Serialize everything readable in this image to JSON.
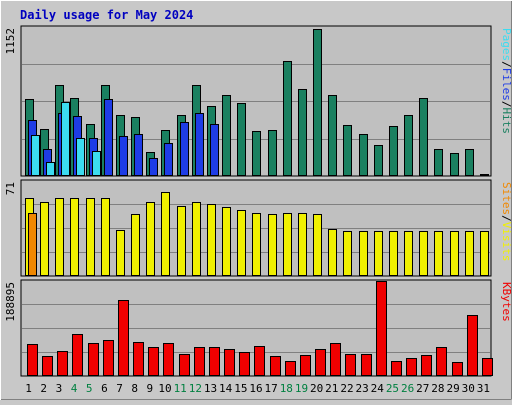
{
  "chart_data": [
    {
      "type": "bar",
      "title": "Daily usage for May 2024",
      "panel": "hits-files-pages",
      "ymax_label": "1152",
      "ylim": [
        0,
        1152
      ],
      "categories": [
        "1",
        "2",
        "3",
        "4",
        "5",
        "6",
        "7",
        "8",
        "9",
        "10",
        "11",
        "12",
        "13",
        "14",
        "15",
        "16",
        "17",
        "18",
        "19",
        "20",
        "21",
        "22",
        "23",
        "24",
        "25",
        "26",
        "27",
        "28",
        "29",
        "30",
        "31"
      ],
      "series": [
        {
          "name": "Hits",
          "color": "#1a8060",
          "values": [
            590,
            360,
            700,
            600,
            400,
            700,
            470,
            450,
            180,
            350,
            470,
            700,
            540,
            620,
            560,
            340,
            350,
            890,
            670,
            1140,
            620,
            390,
            320,
            230,
            380,
            470,
            600,
            200,
            170,
            200,
            1
          ]
        },
        {
          "name": "Files",
          "color": "#1e3ce6",
          "values": [
            430,
            200,
            480,
            460,
            290,
            590,
            300,
            320,
            130,
            250,
            410,
            480,
            400,
            0,
            0,
            0,
            0,
            0,
            0,
            0,
            0,
            0,
            0,
            0,
            0,
            0,
            0,
            0,
            0,
            0,
            0
          ]
        },
        {
          "name": "Pages",
          "color": "#3cdcf0",
          "values": [
            310,
            100,
            570,
            290,
            190,
            0,
            0,
            0,
            0,
            0,
            0,
            0,
            0,
            0,
            0,
            0,
            0,
            0,
            0,
            0,
            0,
            0,
            0,
            0,
            0,
            0,
            0,
            0,
            0,
            0,
            0
          ]
        }
      ]
    },
    {
      "type": "bar",
      "panel": "visits-sites",
      "ymax_label": "71",
      "ylim": [
        0,
        71
      ],
      "categories": [
        "1",
        "2",
        "3",
        "4",
        "5",
        "6",
        "7",
        "8",
        "9",
        "10",
        "11",
        "12",
        "13",
        "14",
        "15",
        "16",
        "17",
        "18",
        "19",
        "20",
        "21",
        "22",
        "23",
        "24",
        "25",
        "26",
        "27",
        "28",
        "29",
        "30",
        "31"
      ],
      "series": [
        {
          "name": "Visits",
          "color": "#f0f000",
          "values": [
            58,
            55,
            58,
            58,
            58,
            58,
            34,
            46,
            55,
            63,
            52,
            55,
            54,
            51,
            49,
            47,
            46,
            47,
            47,
            46,
            35,
            33,
            33,
            33,
            33,
            33,
            33,
            33,
            33,
            33,
            33
          ]
        },
        {
          "name": "Sites",
          "color": "#f08800",
          "values": [
            47,
            0,
            0,
            0,
            0,
            0,
            0,
            0,
            0,
            0,
            0,
            0,
            0,
            0,
            0,
            0,
            0,
            0,
            0,
            0,
            0,
            0,
            0,
            0,
            0,
            0,
            0,
            0,
            0,
            0,
            0
          ]
        }
      ]
    },
    {
      "type": "bar",
      "panel": "kbytes",
      "ymax_label": "188895",
      "ylim": [
        0,
        188895
      ],
      "categories": [
        "1",
        "2",
        "3",
        "4",
        "5",
        "6",
        "7",
        "8",
        "9",
        "10",
        "11",
        "12",
        "13",
        "14",
        "15",
        "16",
        "17",
        "18",
        "19",
        "20",
        "21",
        "22",
        "23",
        "24",
        "25",
        "26",
        "27",
        "28",
        "29",
        "30",
        "31"
      ],
      "series": [
        {
          "name": "KBytes",
          "color": "#f00000",
          "values": [
            63000,
            38000,
            48000,
            83000,
            64000,
            70000,
            150000,
            66000,
            56000,
            65000,
            42000,
            57000,
            57000,
            52000,
            46000,
            59000,
            39000,
            29000,
            40000,
            52000,
            65000,
            42000,
            42000,
            188000,
            28000,
            35000,
            40000,
            56000,
            27000,
            120000,
            35000
          ]
        }
      ]
    }
  ],
  "legend_right": {
    "pages": "Pages",
    "files": "Files",
    "hits": "Hits",
    "sites": "Sites",
    "visits": "Visits",
    "kbytes": "KBytes",
    "sep": "/"
  },
  "colors": {
    "background": "#c8c8c8",
    "plot_bg": "#c0c0c0",
    "frame": "#000000",
    "title": "#0000c0",
    "weekend": "#008040"
  },
  "weekend_days": [
    "4",
    "5",
    "11",
    "12",
    "18",
    "19",
    "25",
    "26"
  ]
}
